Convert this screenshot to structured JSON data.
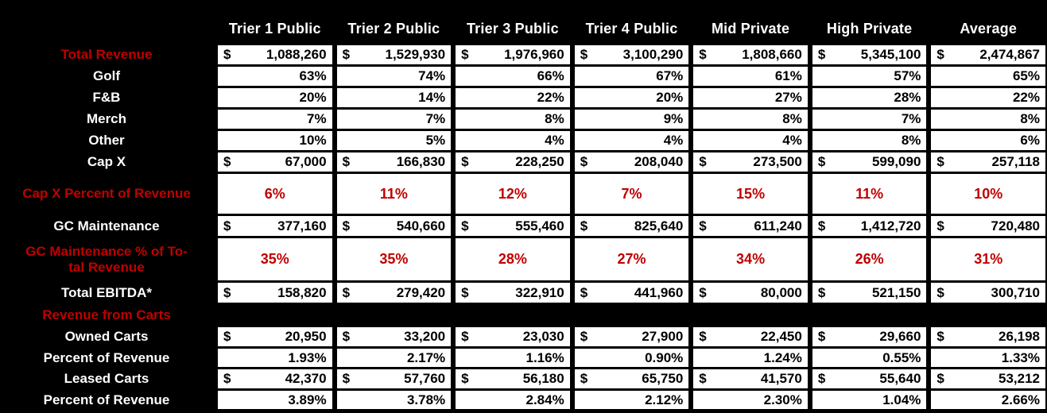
{
  "colors": {
    "background": "#000000",
    "cell_background": "#FFFFFF",
    "accent_red": "#C00000",
    "label_white": "#FFFFFF"
  },
  "table": {
    "currency_symbol": "$",
    "columns": [
      "Trier 1 Public",
      "Trier 2 Public",
      "Trier 3 Public",
      "Trier 4 Public",
      "Mid Private",
      "High Private",
      "Average"
    ],
    "rows": [
      {
        "label": "Total Revenue",
        "label_color": "red",
        "kind": "currency",
        "values": [
          "1,088,260",
          "1,529,930",
          "1,976,960",
          "3,100,290",
          "1,808,660",
          "5,345,100",
          "2,474,867"
        ]
      },
      {
        "label": "Golf",
        "label_color": "white",
        "kind": "percent",
        "values": [
          "63%",
          "74%",
          "66%",
          "67%",
          "61%",
          "57%",
          "65%"
        ]
      },
      {
        "label": "F&B",
        "label_color": "white",
        "kind": "percent",
        "values": [
          "20%",
          "14%",
          "22%",
          "20%",
          "27%",
          "28%",
          "22%"
        ]
      },
      {
        "label": "Merch",
        "label_color": "white",
        "kind": "percent",
        "values": [
          "7%",
          "7%",
          "8%",
          "9%",
          "8%",
          "7%",
          "8%"
        ]
      },
      {
        "label": "Other",
        "label_color": "white",
        "kind": "percent",
        "values": [
          "10%",
          "5%",
          "4%",
          "4%",
          "4%",
          "8%",
          "6%"
        ]
      },
      {
        "label": "Cap X",
        "label_color": "white",
        "kind": "currency",
        "values": [
          "67,000",
          "166,830",
          "228,250",
          "208,040",
          "273,500",
          "599,090",
          "257,118"
        ]
      },
      {
        "label": "Cap X Percent of Revenue",
        "label_color": "red",
        "kind": "highlight",
        "values": [
          "6%",
          "11%",
          "12%",
          "7%",
          "15%",
          "11%",
          "10%"
        ]
      },
      {
        "label": "GC Maintenance",
        "label_color": "white",
        "kind": "currency",
        "values": [
          "377,160",
          "540,660",
          "555,460",
          "825,640",
          "611,240",
          "1,412,720",
          "720,480"
        ]
      },
      {
        "label": "GC Maintenance % of To-\ntal Revenue",
        "label_color": "red",
        "kind": "highlight",
        "values": [
          "35%",
          "35%",
          "28%",
          "27%",
          "34%",
          "26%",
          "31%"
        ]
      },
      {
        "label": "Total EBITDA*",
        "label_color": "white",
        "kind": "currency",
        "values": [
          "158,820",
          "279,420",
          "322,910",
          "441,960",
          "80,000",
          "521,150",
          "300,710"
        ]
      },
      {
        "label": "Revenue from Carts",
        "label_color": "red",
        "kind": "section",
        "values": []
      },
      {
        "label": "Owned Carts",
        "label_color": "white",
        "kind": "currency",
        "values": [
          "20,950",
          "33,200",
          "23,030",
          "27,900",
          "22,450",
          "29,660",
          "26,198"
        ]
      },
      {
        "label": "Percent of Revenue",
        "label_color": "white",
        "kind": "percent",
        "values": [
          "1.93%",
          "2.17%",
          "1.16%",
          "0.90%",
          "1.24%",
          "0.55%",
          "1.33%"
        ]
      },
      {
        "label": "Leased Carts",
        "label_color": "white",
        "kind": "currency",
        "values": [
          "42,370",
          "57,760",
          "56,180",
          "65,750",
          "41,570",
          "55,640",
          "53,212"
        ]
      },
      {
        "label": "Percent of Revenue",
        "label_color": "white",
        "kind": "percent",
        "values": [
          "3.89%",
          "3.78%",
          "2.84%",
          "2.12%",
          "2.30%",
          "1.04%",
          "2.66%"
        ]
      }
    ]
  },
  "chart_data": {
    "type": "table",
    "title": "",
    "categories": [
      "Trier 1 Public",
      "Trier 2 Public",
      "Trier 3 Public",
      "Trier 4 Public",
      "Mid Private",
      "High Private",
      "Average"
    ],
    "series": [
      {
        "name": "Total Revenue",
        "format": "currency",
        "values": [
          1088260,
          1529930,
          1976960,
          3100290,
          1808660,
          5345100,
          2474867
        ]
      },
      {
        "name": "Golf",
        "format": "percent",
        "values": [
          63,
          74,
          66,
          67,
          61,
          57,
          65
        ]
      },
      {
        "name": "F&B",
        "format": "percent",
        "values": [
          20,
          14,
          22,
          20,
          27,
          28,
          22
        ]
      },
      {
        "name": "Merch",
        "format": "percent",
        "values": [
          7,
          7,
          8,
          9,
          8,
          7,
          8
        ]
      },
      {
        "name": "Other",
        "format": "percent",
        "values": [
          10,
          5,
          4,
          4,
          4,
          8,
          6
        ]
      },
      {
        "name": "Cap X",
        "format": "currency",
        "values": [
          67000,
          166830,
          228250,
          208040,
          273500,
          599090,
          257118
        ]
      },
      {
        "name": "Cap X Percent of Revenue",
        "format": "percent",
        "values": [
          6,
          11,
          12,
          7,
          15,
          11,
          10
        ]
      },
      {
        "name": "GC Maintenance",
        "format": "currency",
        "values": [
          377160,
          540660,
          555460,
          825640,
          611240,
          1412720,
          720480
        ]
      },
      {
        "name": "GC Maintenance % of Total Revenue",
        "format": "percent",
        "values": [
          35,
          35,
          28,
          27,
          34,
          26,
          31
        ]
      },
      {
        "name": "Total EBITDA*",
        "format": "currency",
        "values": [
          158820,
          279420,
          322910,
          441960,
          80000,
          521150,
          300710
        ]
      },
      {
        "name": "Owned Carts",
        "format": "currency",
        "values": [
          20950,
          33200,
          23030,
          27900,
          22450,
          29660,
          26198
        ]
      },
      {
        "name": "Percent of Revenue (Owned Carts)",
        "format": "percent",
        "values": [
          1.93,
          2.17,
          1.16,
          0.9,
          1.24,
          0.55,
          1.33
        ]
      },
      {
        "name": "Leased Carts",
        "format": "currency",
        "values": [
          42370,
          57760,
          56180,
          65750,
          41570,
          55640,
          53212
        ]
      },
      {
        "name": "Percent of Revenue (Leased Carts)",
        "format": "percent",
        "values": [
          3.89,
          3.78,
          2.84,
          2.12,
          2.3,
          1.04,
          2.66
        ]
      }
    ]
  }
}
